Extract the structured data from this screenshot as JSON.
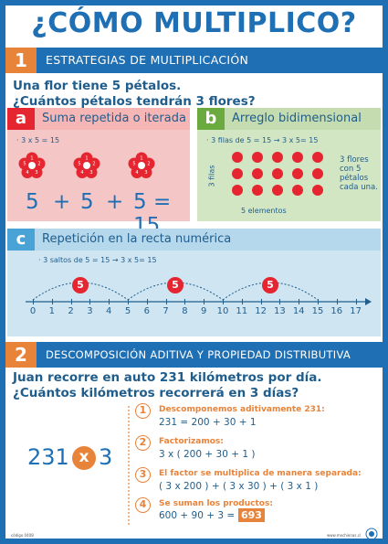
{
  "title": "¿CÓMO MULTIPLICO?",
  "section1": {
    "number": "1",
    "title": "ESTRATEGIAS DE MULTIPLICACIÓN",
    "question_line1": "Una flor tiene 5 pétalos.",
    "question_line2": "¿Cuántos pétalos tendrán 3 flores?",
    "panel_a": {
      "letter": "a",
      "label": "Suma repetida o iterada",
      "formula": "· 3 x 5 = 15",
      "flower_petals": [
        "1",
        "2",
        "3",
        "4",
        "5"
      ],
      "sum": [
        "5",
        "+",
        "5",
        "+",
        "5 = 15"
      ]
    },
    "panel_b": {
      "letter": "b",
      "label": "Arreglo bidimensional",
      "formula": "· 3 filas de 5 = 15  → 3 x 5= 15",
      "rows_label": "3 filas",
      "note": [
        "3 flores",
        "con 5",
        "pétalos",
        "cada una."
      ],
      "cols_label": "5 elementos"
    },
    "panel_c": {
      "letter": "c",
      "label": "Repetición en la recta numérica",
      "formula": "· 3 saltos de 5 = 15  → 3 x 5= 15",
      "jump": "5",
      "ticks": [
        "0",
        "1",
        "2",
        "3",
        "4",
        "5",
        "6",
        "7",
        "8",
        "9",
        "10",
        "11",
        "12",
        "13",
        "14",
        "15",
        "16",
        "17"
      ]
    }
  },
  "section2": {
    "number": "2",
    "title": "DESCOMPOSICIÓN ADITIVA Y PROPIEDAD DISTRIBUTIVA",
    "question_line1": "Juan recorre en auto 231 kilómetros por día.",
    "question_line2": "¿Cuántos kilómetros recorrerá en 3 días?",
    "mult_left": "231",
    "mult_sign": "x",
    "mult_right": "3",
    "steps": [
      {
        "n": "1",
        "a": "Descomponemos aditivamente 231:",
        "b": "231 = 200 + 30 + 1"
      },
      {
        "n": "2",
        "a": "Factorizamos:",
        "b": "3 x ( 200 + 30 + 1 )"
      },
      {
        "n": "3",
        "a": "El factor se multiplica de manera separada:",
        "b": "( 3 x 200 ) + ( 3 x 30 ) + ( 3 x 1 )"
      },
      {
        "n": "4",
        "a": "Se suman los productos:",
        "b": "600 + 90 + 3 = ",
        "result": "693"
      }
    ]
  },
  "footer": {
    "code": "código 0408",
    "site": "www.mochienas.cl"
  },
  "colors": {
    "blue": "#1f6fb4",
    "orange": "#e8833a",
    "red": "#e52630",
    "pink": "#f4c6c6",
    "green": "#d3e6c4",
    "lightblue": "#cfe5f2"
  }
}
